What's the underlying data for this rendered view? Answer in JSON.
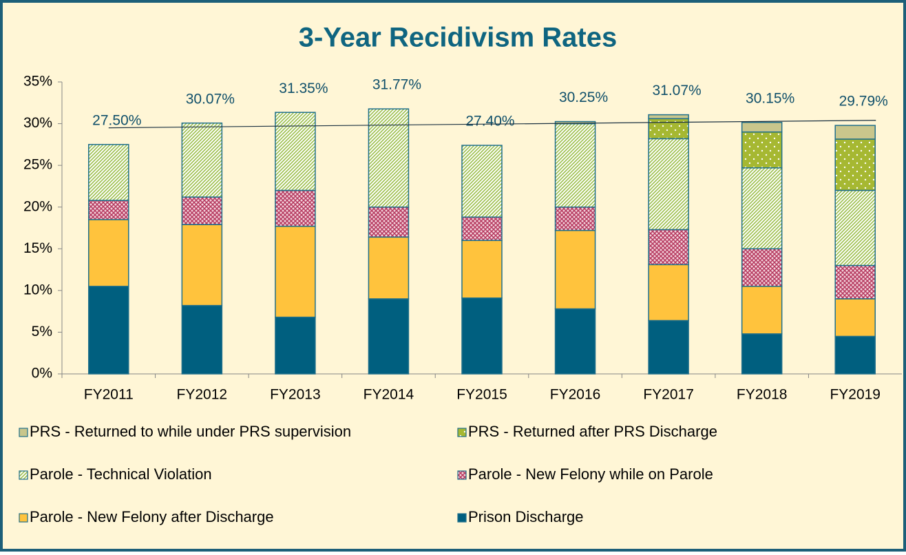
{
  "chart_data": {
    "type": "stacked_bar",
    "title": "3-Year Recidivism Rates",
    "categories": [
      "FY2011",
      "FY2012",
      "FY2013",
      "FY2014",
      "FY2015",
      "FY2016",
      "FY2017",
      "FY2018",
      "FY2019"
    ],
    "series": [
      {
        "name": "Prison Discharge",
        "color": "#005f7f",
        "pattern": "solid",
        "values": [
          10.5,
          8.2,
          6.8,
          9.0,
          9.1,
          7.8,
          6.4,
          4.8,
          4.5
        ]
      },
      {
        "name": "Parole - New Felony after Discharge",
        "color": "#ffc33d",
        "pattern": "solid",
        "values": [
          8.0,
          9.7,
          10.9,
          7.4,
          6.9,
          9.4,
          6.7,
          5.7,
          4.5
        ]
      },
      {
        "name": "Parole - New Felony while on Parole",
        "color": "#b5385e",
        "pattern": "crosshatch",
        "values": [
          2.3,
          3.3,
          4.3,
          3.6,
          2.8,
          2.8,
          4.2,
          4.5,
          4.0
        ]
      },
      {
        "name": "Parole - Technical Violation",
        "color": "#9cbf4a",
        "pattern": "hatch",
        "values": [
          6.7,
          8.87,
          9.35,
          11.77,
          8.6,
          10.0,
          10.9,
          9.7,
          9.0
        ]
      },
      {
        "name": "PRS - Returned after PRS Discharge",
        "color": "#a6b832",
        "pattern": "dots",
        "values": [
          0,
          0,
          0,
          0,
          0,
          0,
          2.4,
          4.3,
          6.15
        ]
      },
      {
        "name": "PRS - Returned to while under PRS supervision",
        "color": "#c9c68c",
        "pattern": "solid",
        "values": [
          0,
          0,
          0,
          0,
          0,
          0.25,
          0.47,
          1.15,
          1.64
        ]
      }
    ],
    "totals": {
      "values": [
        27.5,
        30.07,
        31.35,
        31.77,
        27.4,
        30.25,
        31.07,
        30.15,
        29.79
      ],
      "value_labels": [
        "27.50%",
        "30.07%",
        "31.35%",
        "31.77%",
        "27.40%",
        "30.25%",
        "31.07%",
        "30.15%",
        "29.79%"
      ]
    },
    "trendline": [
      29.5,
      30.4
    ],
    "ylim": [
      0,
      35
    ],
    "yticks": [
      {
        "value": 0,
        "label": "0%"
      },
      {
        "value": 5,
        "label": "5%"
      },
      {
        "value": 10,
        "label": "10%"
      },
      {
        "value": 15,
        "label": "15%"
      },
      {
        "value": 20,
        "label": "20%"
      },
      {
        "value": 25,
        "label": "25%"
      },
      {
        "value": 30,
        "label": "30%"
      },
      {
        "value": 35,
        "label": "35%"
      }
    ],
    "grid": false
  }
}
